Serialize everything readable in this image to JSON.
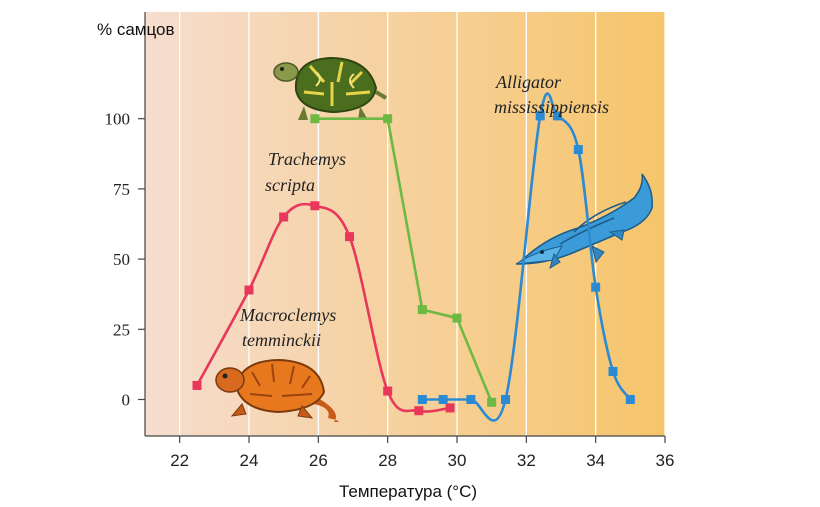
{
  "chart_data": {
    "type": "line",
    "title": "",
    "ylabel": "% самцов",
    "xlabel": "Температура (°C)",
    "xlim": [
      21,
      36
    ],
    "ylim": [
      -13,
      138
    ],
    "x_ticks": [
      "22",
      "24",
      "26",
      "28",
      "30",
      "32",
      "34",
      "36"
    ],
    "y_ticks": [
      "0",
      "25",
      "50",
      "75",
      "100"
    ],
    "grid": "vertical",
    "background": [
      "#f6ddcf",
      "#f6c56a"
    ],
    "series": [
      {
        "name": "Macroclemys temminckii",
        "color": "#e8375a",
        "points": [
          [
            22.5,
            5
          ],
          [
            24,
            39
          ],
          [
            25,
            65
          ],
          [
            25.9,
            69
          ],
          [
            26.9,
            58
          ],
          [
            28,
            3
          ],
          [
            28.9,
            -4
          ],
          [
            29.8,
            -3
          ]
        ]
      },
      {
        "name": "Trachemys scripta",
        "color": "#6cb944",
        "points": [
          [
            25.9,
            100
          ],
          [
            28,
            100
          ],
          [
            29,
            32
          ],
          [
            30,
            29
          ],
          [
            31,
            -1
          ]
        ]
      },
      {
        "name": "Alligator mississippiensis",
        "color": "#2a8ad4",
        "points": [
          [
            29,
            0
          ],
          [
            29.6,
            0
          ],
          [
            30.4,
            0
          ],
          [
            31.4,
            0
          ],
          [
            32.4,
            101
          ],
          [
            32.9,
            101
          ],
          [
            33.5,
            89
          ],
          [
            34,
            40
          ],
          [
            34.5,
            10
          ],
          [
            35,
            0
          ]
        ]
      }
    ],
    "series_labels": {
      "macroclemys": [
        "Macroclemys",
        "temminckii"
      ],
      "trachemys": [
        "Trachemys",
        "scripta"
      ],
      "alligator": [
        "Alligator",
        "mississippiensis"
      ]
    }
  }
}
